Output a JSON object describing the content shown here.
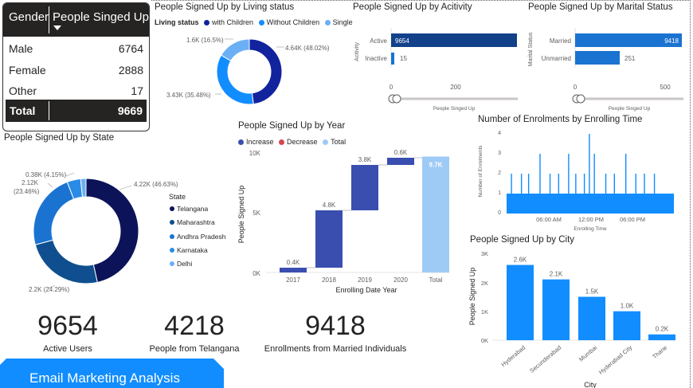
{
  "gender_table": {
    "col_gender": "Gender",
    "col_people": "People Singed Up",
    "rows": [
      {
        "label": "Male",
        "value": "6764"
      },
      {
        "label": "Female",
        "value": "2888"
      },
      {
        "label": "Other",
        "value": "17"
      }
    ],
    "total_label": "Total",
    "total_value": "9669"
  },
  "living_status": {
    "title": "People Signed Up by Living status",
    "legend_title": "Living status",
    "legend": [
      {
        "name": "with Children",
        "color": "#12239e"
      },
      {
        "name": "Without Children",
        "color": "#118dff"
      },
      {
        "name": "Single",
        "color": "#6bb0f5"
      }
    ],
    "labels": {
      "with_children": "4.64K (48.02%)",
      "without_children": "3.43K (35.48%)",
      "single": "1.6K (16.5%)"
    }
  },
  "activity": {
    "title": "People Signed Up by Acitivity",
    "ylabel": "Acitivity",
    "xlabel": "People Singed Up",
    "ticks": [
      "0",
      "200"
    ],
    "bars": [
      {
        "label": "Active",
        "value": "9654"
      },
      {
        "label": "Inactive",
        "value": "15"
      }
    ]
  },
  "marital": {
    "title": "People Signed Up by Marital Status",
    "ylabel": "Marital Status",
    "xlabel": "People Singed Up",
    "ticks": [
      "0",
      "500"
    ],
    "bars": [
      {
        "label": "Married",
        "value": "9418"
      },
      {
        "label": "Unmarried",
        "value": "251"
      }
    ]
  },
  "state": {
    "title": "People Signed Up by State",
    "legend_title": "State",
    "legend": [
      {
        "name": "Telangana",
        "color": "#0c1359"
      },
      {
        "name": "Maharashtra",
        "color": "#0f4f8f"
      },
      {
        "name": "Andhra Pradesh",
        "color": "#1a73d1"
      },
      {
        "name": "Karnataka",
        "color": "#2a8be6"
      },
      {
        "name": "Delhi",
        "color": "#6bb0f5"
      }
    ],
    "labels": {
      "telangana": "4.22K (46.63%)",
      "maharashtra": "2.2K (24.29%)",
      "andhra_l1": "2.12K",
      "andhra_l2": "(23.46%)",
      "karnataka": "0.38K (4.15%)"
    }
  },
  "year": {
    "title": "People Signed Up by Year",
    "legend": [
      {
        "name": "Increase",
        "color": "#3a4eb0"
      },
      {
        "name": "Decrease",
        "color": "#d64550"
      },
      {
        "name": "Total",
        "color": "#9ecbf5"
      }
    ],
    "ylabel": "People Signed Up",
    "xlabel": "Enrolling Date Year",
    "yticks": [
      "10K",
      "5K",
      "0K"
    ]
  },
  "enrol_time": {
    "title": "Number of Enrolments by Enrolling Time",
    "ylabel": "Number of Enrolments",
    "xlabel": "Enrolling Time",
    "yticks": [
      "4",
      "3",
      "2",
      "1",
      "0"
    ],
    "xticks": [
      "06:00 AM",
      "12:00 PM",
      "06:00 PM"
    ]
  },
  "city": {
    "title": "People Signed Up by City",
    "ylabel": "People Signed Up",
    "xlabel": "City",
    "yticks": [
      "3K",
      "2K",
      "1K",
      "0K"
    ]
  },
  "kpis": [
    {
      "value": "9654",
      "label": "Active Users"
    },
    {
      "value": "4218",
      "label": "People from Telangana"
    },
    {
      "value": "9418",
      "label": "Enrollments from Married Individuals"
    }
  ],
  "banner": {
    "label": "Email Marketing Analysis",
    "color": "#118dff"
  },
  "chart_data": [
    {
      "type": "pie",
      "title": "People Signed Up by Living status",
      "legend_title": "Living status",
      "categories": [
        "with Children",
        "Without Children",
        "Single"
      ],
      "values": [
        4640,
        3430,
        1600
      ],
      "percent": [
        48.02,
        35.48,
        16.5
      ]
    },
    {
      "type": "bar",
      "title": "People Signed Up by Acitivity",
      "categories": [
        "Active",
        "Inactive"
      ],
      "values": [
        9654,
        15
      ],
      "xlabel": "People Singed Up",
      "ylabel": "Acitivity"
    },
    {
      "type": "bar",
      "title": "People Signed Up by Marital Status",
      "categories": [
        "Married",
        "Unmarried"
      ],
      "values": [
        9418,
        251
      ],
      "xlabel": "People Singed Up",
      "ylabel": "Marital Status"
    },
    {
      "type": "pie",
      "title": "People Signed Up by State",
      "legend_title": "State",
      "categories": [
        "Telangana",
        "Maharashtra",
        "Andhra Pradesh",
        "Karnataka",
        "Delhi"
      ],
      "values": [
        4220,
        2200,
        2120,
        380,
        150
      ],
      "percent": [
        46.63,
        24.29,
        23.46,
        4.15,
        1.47
      ]
    },
    {
      "type": "bar",
      "subtype": "waterfall",
      "title": "People Signed Up by Year",
      "categories": [
        "2017",
        "2018",
        "2019",
        "2020",
        "Total"
      ],
      "values": [
        400,
        4800,
        3800,
        600,
        9700
      ],
      "value_labels": [
        "0.4K",
        "4.8K",
        "3.8K",
        "0.6K",
        "9.7K"
      ],
      "xlabel": "Enrolling Date Year",
      "ylabel": "People Signed Up",
      "ylim": [
        0,
        10000
      ]
    },
    {
      "type": "bar",
      "title": "Number of Enrolments by Enrolling Time",
      "xlabel": "Enrolling Time",
      "ylabel": "Number of Enrolments",
      "ylim": [
        0,
        4
      ],
      "baseline": 1,
      "spikes": [
        {
          "time": "03:00 AM",
          "value": 2
        },
        {
          "time": "04:10 AM",
          "value": 2
        },
        {
          "time": "05:00 AM",
          "value": 2
        },
        {
          "time": "06:20 AM",
          "value": 3
        },
        {
          "time": "07:30 AM",
          "value": 2
        },
        {
          "time": "08:30 AM",
          "value": 2
        },
        {
          "time": "09:40 AM",
          "value": 3
        },
        {
          "time": "10:30 AM",
          "value": 2
        },
        {
          "time": "11:30 AM",
          "value": 2
        },
        {
          "time": "12:05 PM",
          "value": 4
        },
        {
          "time": "12:40 PM",
          "value": 3
        },
        {
          "time": "02:00 PM",
          "value": 2
        },
        {
          "time": "03:00 PM",
          "value": 2
        },
        {
          "time": "04:20 PM",
          "value": 3
        },
        {
          "time": "05:30 PM",
          "value": 2
        },
        {
          "time": "06:30 PM",
          "value": 2
        },
        {
          "time": "07:40 PM",
          "value": 2
        }
      ]
    },
    {
      "type": "bar",
      "title": "People Signed Up by City",
      "categories": [
        "Hyderabad",
        "Secunderabad",
        "Mumbai",
        "Hyderabad City",
        "Thane"
      ],
      "values": [
        2600,
        2100,
        1500,
        1000,
        200
      ],
      "value_labels": [
        "2.6K",
        "2.1K",
        "1.5K",
        "1.0K",
        "0.2K"
      ],
      "xlabel": "City",
      "ylabel": "People Signed Up",
      "ylim": [
        0,
        3000
      ]
    }
  ]
}
